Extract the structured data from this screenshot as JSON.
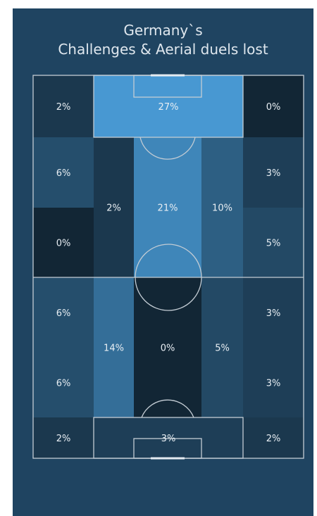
{
  "chart_data": {
    "type": "heatmap",
    "title_lines": [
      "Germany`s",
      "Challenges & Aerial duels lost"
    ],
    "unit": "%",
    "zones": [
      {
        "id": "top-left-corner",
        "value": 2
      },
      {
        "id": "top-penalty-area",
        "value": 27
      },
      {
        "id": "top-right-corner",
        "value": 0
      },
      {
        "id": "upper-left-wing-a",
        "value": 6
      },
      {
        "id": "upper-left-wing-b",
        "value": 0
      },
      {
        "id": "upper-left-halfspace",
        "value": 2
      },
      {
        "id": "upper-centre",
        "value": 21
      },
      {
        "id": "upper-right-halfspace",
        "value": 10
      },
      {
        "id": "upper-right-wing-a",
        "value": 3
      },
      {
        "id": "upper-right-wing-b",
        "value": 5
      },
      {
        "id": "lower-left-wing-a",
        "value": 6
      },
      {
        "id": "lower-left-wing-b",
        "value": 6
      },
      {
        "id": "lower-left-halfspace",
        "value": 14
      },
      {
        "id": "lower-centre",
        "value": 0
      },
      {
        "id": "lower-right-halfspace",
        "value": 5
      },
      {
        "id": "lower-right-wing-a",
        "value": 3
      },
      {
        "id": "lower-right-wing-b",
        "value": 3
      },
      {
        "id": "bottom-left-corner",
        "value": 2
      },
      {
        "id": "bottom-penalty-area",
        "value": 3
      },
      {
        "id": "bottom-right-corner",
        "value": 2
      }
    ]
  }
}
